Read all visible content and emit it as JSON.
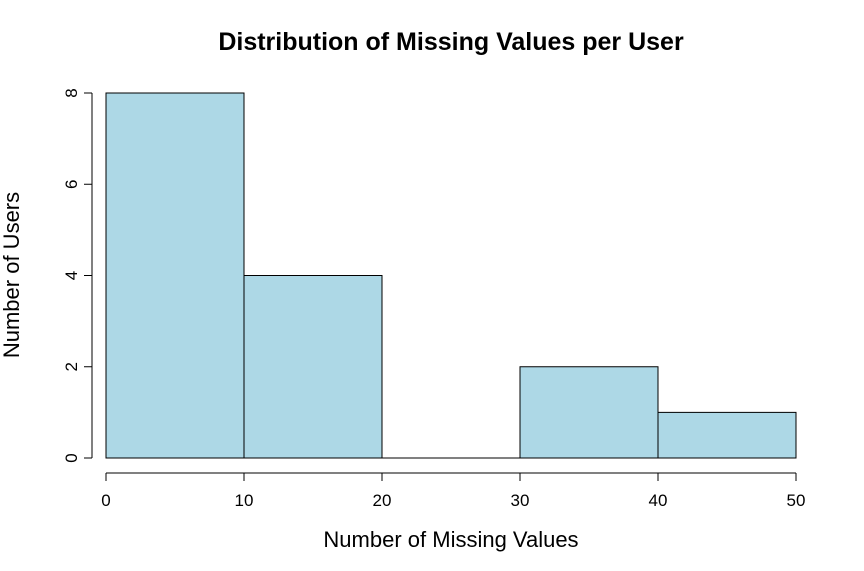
{
  "chart_data": {
    "type": "bar",
    "title": "Distribution of Missing Values per User",
    "xlabel": "Number of Missing Values",
    "ylabel": "Number of Users",
    "bins": [
      {
        "start": 0,
        "end": 10,
        "count": 8
      },
      {
        "start": 10,
        "end": 20,
        "count": 4
      },
      {
        "start": 20,
        "end": 30,
        "count": 0
      },
      {
        "start": 30,
        "end": 40,
        "count": 2
      },
      {
        "start": 40,
        "end": 50,
        "count": 1
      }
    ],
    "xlim": [
      0,
      50
    ],
    "ylim": [
      0,
      8
    ],
    "x_ticks": [
      "0",
      "10",
      "20",
      "30",
      "40",
      "50"
    ],
    "y_ticks": [
      "0",
      "2",
      "4",
      "6",
      "8"
    ],
    "bar_color": "#add8e6",
    "grid": false,
    "legend": "none"
  }
}
